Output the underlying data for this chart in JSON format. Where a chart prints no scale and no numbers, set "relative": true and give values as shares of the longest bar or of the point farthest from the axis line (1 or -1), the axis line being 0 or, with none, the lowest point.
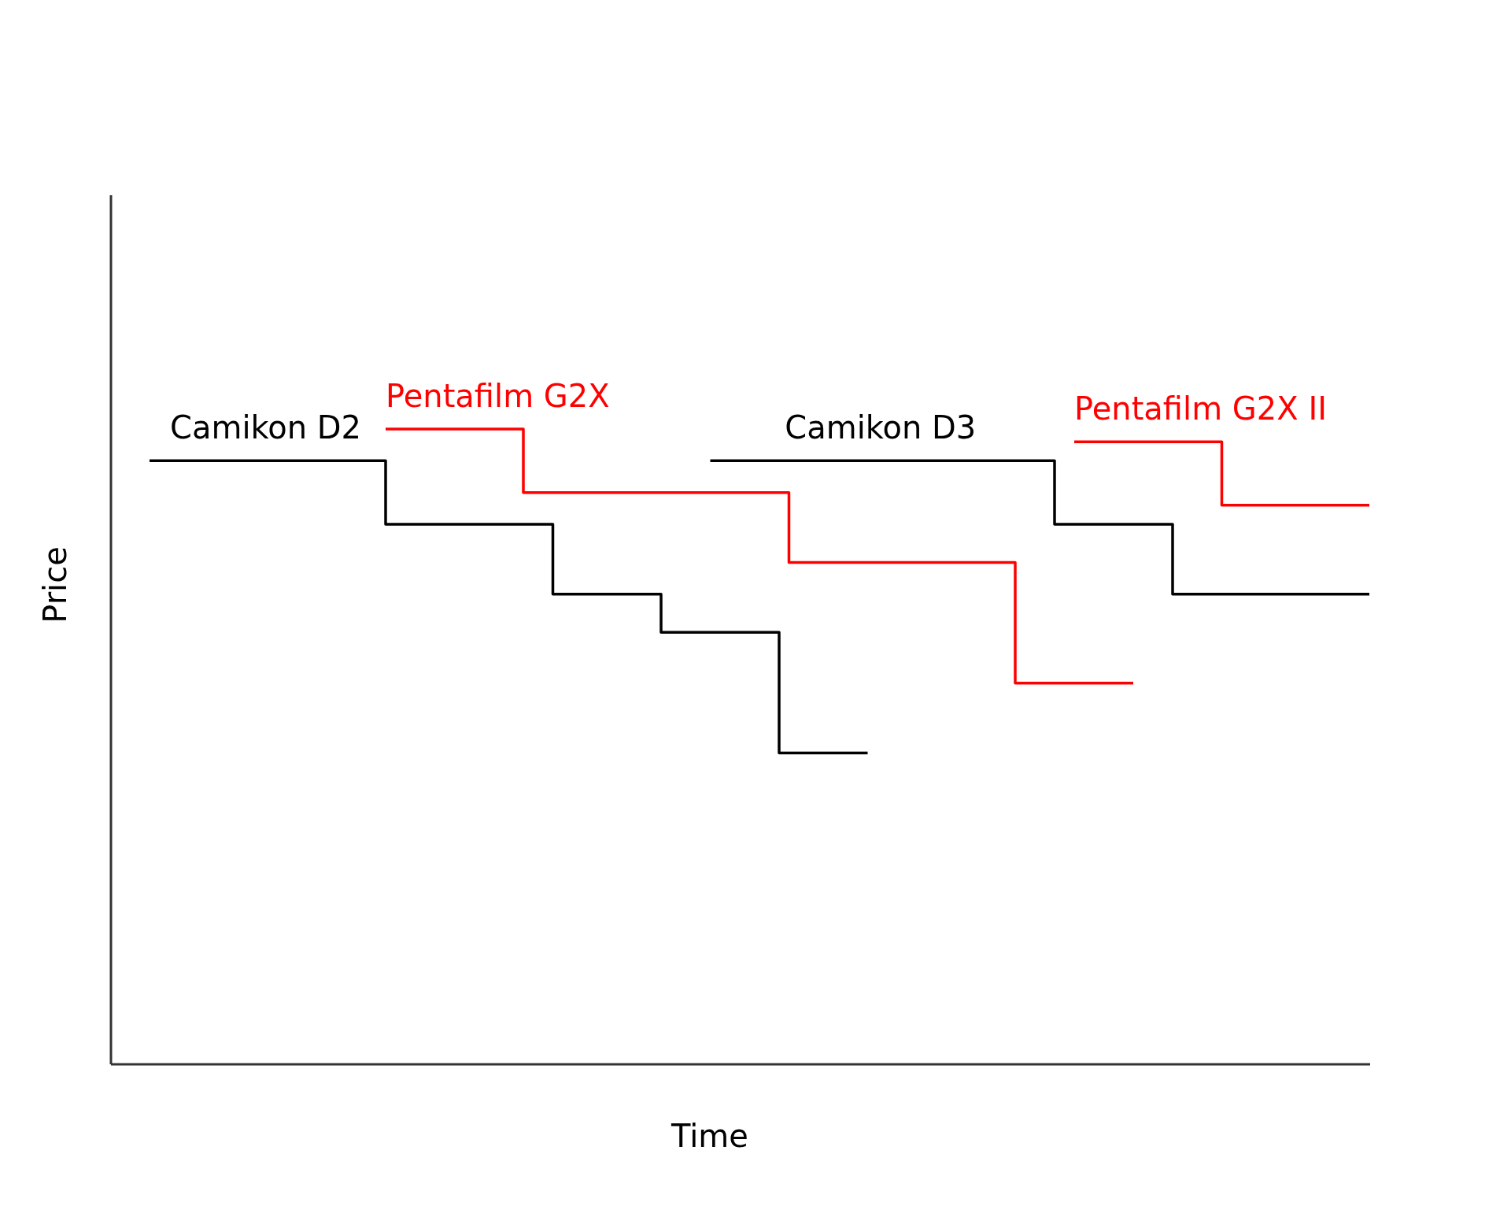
{
  "chart_data": {
    "type": "step",
    "relative": true,
    "xlabel": "Time",
    "ylabel": "Price",
    "categories": [
      null,
      null,
      null,
      null,
      null,
      null,
      null,
      null,
      null,
      null,
      null,
      null,
      null,
      null,
      null,
      null,
      null,
      null,
      null,
      null,
      null,
      null,
      null,
      null,
      null,
      null,
      null,
      null,
      null,
      null,
      null,
      null,
      null,
      null,
      null,
      null,
      null,
      null,
      null,
      null,
      null,
      null,
      null,
      null,
      null,
      null,
      null,
      null,
      null,
      null,
      null,
      null,
      null,
      null,
      null,
      null,
      null,
      null,
      null,
      null,
      null,
      null,
      null,
      null,
      null,
      null,
      null,
      null,
      null,
      null,
      null,
      null,
      null,
      null,
      null,
      null,
      null,
      null,
      null,
      null,
      null,
      null,
      null,
      null,
      null,
      null,
      null,
      null,
      null,
      null,
      null,
      null,
      null,
      null,
      null,
      null,
      null,
      null,
      null,
      null,
      null,
      null,
      null,
      null,
      null,
      null,
      null,
      null,
      null,
      null,
      null,
      null,
      null,
      null,
      null,
      null,
      null,
      null,
      null,
      null,
      null,
      null,
      null,
      null,
      null
    ],
    "series": [
      {
        "name": "Camikon D2",
        "color": "#000000",
        "values": [
          0.95,
          0.95,
          0.95,
          0.95,
          0.95,
          0.95,
          0.95,
          0.95,
          0.95,
          0.95,
          0.95,
          0.95,
          0.95,
          0.95,
          0.95,
          0.95,
          0.95,
          0.95,
          0.95,
          0.95,
          0.95,
          0.95,
          0.95,
          0.95,
          0.85,
          0.85,
          0.85,
          0.85,
          0.85,
          0.85,
          0.85,
          0.85,
          0.85,
          0.85,
          0.85,
          0.85,
          0.85,
          0.85,
          0.85,
          0.85,
          0.85,
          0.74,
          0.74,
          0.74,
          0.74,
          0.74,
          0.74,
          0.74,
          0.74,
          0.74,
          0.74,
          0.74,
          0.68,
          0.68,
          0.68,
          0.68,
          0.68,
          0.68,
          0.68,
          0.68,
          0.68,
          0.68,
          0.68,
          0.68,
          0.49,
          0.49,
          0.49,
          0.49,
          0.49,
          0.49,
          0.49,
          0.49,
          0.49,
          0.49,
          null,
          null,
          null,
          null,
          null,
          null,
          null,
          null,
          null,
          null,
          null,
          null,
          null,
          null,
          null,
          null,
          null,
          null,
          null,
          null,
          null,
          null,
          null,
          null,
          null,
          null,
          null,
          null,
          null,
          null,
          null,
          null,
          null,
          null,
          null,
          null,
          null,
          null,
          null,
          null,
          null,
          null,
          null,
          null,
          null,
          null,
          null,
          null,
          null,
          null,
          null
        ]
      },
      {
        "name": "Pentafilm G2X",
        "color": "#ff0000",
        "values": [
          null,
          null,
          null,
          null,
          null,
          null,
          null,
          null,
          null,
          null,
          null,
          null,
          null,
          null,
          null,
          null,
          null,
          null,
          null,
          null,
          null,
          null,
          null,
          null,
          1,
          1,
          1,
          1,
          1,
          1,
          1,
          1,
          1,
          1,
          1,
          1,
          1,
          1,
          0.9,
          0.9,
          0.9,
          0.9,
          0.9,
          0.9,
          0.9,
          0.9,
          0.9,
          0.9,
          0.9,
          0.9,
          0.9,
          0.9,
          0.9,
          0.9,
          0.9,
          0.9,
          0.9,
          0.9,
          0.9,
          0.9,
          0.9,
          0.9,
          0.9,
          0.9,
          0.9,
          0.79,
          0.79,
          0.79,
          0.79,
          0.79,
          0.79,
          0.79,
          0.79,
          0.79,
          0.79,
          0.79,
          0.79,
          0.79,
          0.79,
          0.79,
          0.79,
          0.79,
          0.79,
          0.79,
          0.79,
          0.79,
          0.79,
          0.79,
          0.6,
          0.6,
          0.6,
          0.6,
          0.6,
          0.6,
          0.6,
          0.6,
          0.6,
          0.6,
          0.6,
          0.6,
          0.6,
          null,
          null,
          null,
          null,
          null,
          null,
          null,
          null,
          null,
          null,
          null,
          null,
          null,
          null,
          null,
          null,
          null,
          null,
          null,
          null,
          null,
          null,
          null,
          null
        ]
      },
      {
        "name": "Camikon D3",
        "color": "#000000",
        "values": [
          null,
          null,
          null,
          null,
          null,
          null,
          null,
          null,
          null,
          null,
          null,
          null,
          null,
          null,
          null,
          null,
          null,
          null,
          null,
          null,
          null,
          null,
          null,
          null,
          null,
          null,
          null,
          null,
          null,
          null,
          null,
          null,
          null,
          null,
          null,
          null,
          null,
          null,
          null,
          null,
          null,
          null,
          null,
          null,
          null,
          null,
          null,
          null,
          null,
          null,
          null,
          null,
          null,
          null,
          null,
          null,
          null,
          0.95,
          0.95,
          0.95,
          0.95,
          0.95,
          0.95,
          0.95,
          0.95,
          0.95,
          0.95,
          0.95,
          0.95,
          0.95,
          0.95,
          0.95,
          0.95,
          0.95,
          0.95,
          0.95,
          0.95,
          0.95,
          0.95,
          0.95,
          0.95,
          0.95,
          0.95,
          0.95,
          0.95,
          0.95,
          0.95,
          0.95,
          0.95,
          0.95,
          0.95,
          0.95,
          0.85,
          0.85,
          0.85,
          0.85,
          0.85,
          0.85,
          0.85,
          0.85,
          0.85,
          0.85,
          0.85,
          0.85,
          0.74,
          0.74,
          0.74,
          0.74,
          0.74,
          0.74,
          0.74,
          0.74,
          0.74,
          0.74,
          0.74,
          0.74,
          0.74,
          0.74,
          0.74,
          0.74,
          0.74,
          0.74,
          0.74,
          0.74,
          0.74
        ]
      },
      {
        "name": "Pentafilm G2X II",
        "color": "#ff0000",
        "values": [
          null,
          null,
          null,
          null,
          null,
          null,
          null,
          null,
          null,
          null,
          null,
          null,
          null,
          null,
          null,
          null,
          null,
          null,
          null,
          null,
          null,
          null,
          null,
          null,
          null,
          null,
          null,
          null,
          null,
          null,
          null,
          null,
          null,
          null,
          null,
          null,
          null,
          null,
          null,
          null,
          null,
          null,
          null,
          null,
          null,
          null,
          null,
          null,
          null,
          null,
          null,
          null,
          null,
          null,
          null,
          null,
          null,
          null,
          null,
          null,
          null,
          null,
          null,
          null,
          null,
          null,
          null,
          null,
          null,
          null,
          null,
          null,
          null,
          null,
          null,
          null,
          null,
          null,
          null,
          null,
          null,
          null,
          null,
          null,
          null,
          null,
          null,
          null,
          null,
          null,
          null,
          null,
          null,
          null,
          0.98,
          0.98,
          0.98,
          0.98,
          0.98,
          0.98,
          0.98,
          0.98,
          0.98,
          0.98,
          0.98,
          0.98,
          0.98,
          0.98,
          0.98,
          0.88,
          0.88,
          0.88,
          0.88,
          0.88,
          0.88,
          0.88,
          0.88,
          0.88,
          0.88,
          0.88,
          0.88,
          0.88,
          0.88,
          0.88,
          0.88
        ]
      }
    ]
  }
}
